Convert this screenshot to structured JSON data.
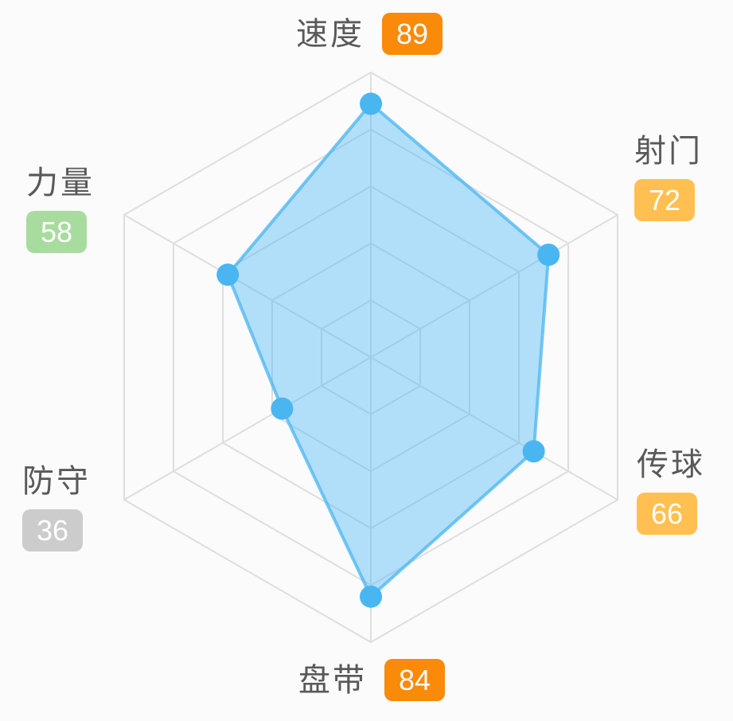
{
  "page": {
    "background_color": "#FBFBFB"
  },
  "chart_data": {
    "type": "radar",
    "shape": "hexagon",
    "max": 100,
    "levels": 5,
    "grid_on": true,
    "grid_color": "#DEDEDE",
    "series_color": "#49B6F2",
    "fill_opacity": 0.42,
    "stroke_opacity": 0.75,
    "label_color": "#595959",
    "badge_text_color": "#FFFFFF",
    "indicators": [
      {
        "name": "速度",
        "value": 89,
        "badge_color": "#FA8A0A",
        "position": "top"
      },
      {
        "name": "射门",
        "value": 72,
        "badge_color": "#FFC051",
        "position": "top-right"
      },
      {
        "name": "传球",
        "value": 66,
        "badge_color": "#FFC051",
        "position": "bottom-right"
      },
      {
        "name": "盘带",
        "value": 84,
        "badge_color": "#FA8A0A",
        "position": "bottom"
      },
      {
        "name": "防守",
        "value": 36,
        "badge_color": "#CCCCCC",
        "position": "bottom-left"
      },
      {
        "name": "力量",
        "value": 58,
        "badge_color": "#A8DB9E",
        "position": "top-left"
      }
    ]
  }
}
